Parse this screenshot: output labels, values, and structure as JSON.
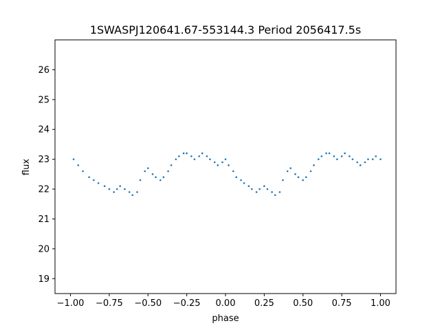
{
  "chart_data": {
    "type": "scatter",
    "title": "1SWASPJ120641.67-553144.3 Period 2056417.5s",
    "xlabel": "phase",
    "ylabel": "flux",
    "xlim": [
      -1.1,
      1.1
    ],
    "ylim": [
      18.5,
      27.0
    ],
    "x_ticks": [
      -1.0,
      -0.75,
      -0.5,
      -0.25,
      0.0,
      0.25,
      0.5,
      0.75,
      1.0
    ],
    "x_tick_labels": [
      "−1.00",
      "−0.75",
      "−0.50",
      "−0.25",
      "0.00",
      "0.25",
      "0.50",
      "0.75",
      "1.00"
    ],
    "y_ticks": [
      19,
      20,
      21,
      22,
      23,
      24,
      25,
      26
    ],
    "y_tick_labels": [
      "19",
      "20",
      "21",
      "22",
      "23",
      "24",
      "25",
      "26"
    ],
    "grid": false,
    "legend": "none",
    "marker_color": "#1f77b4",
    "series": [
      {
        "x": [
          -0.98,
          -0.95,
          -0.92,
          -0.88,
          -0.85,
          -0.82,
          -0.78,
          -0.75,
          -0.72,
          -0.7,
          -0.68,
          -0.65,
          -0.62,
          -0.6,
          -0.57,
          -0.55,
          -0.52,
          -0.5,
          -0.47,
          -0.45,
          -0.42,
          -0.4,
          -0.37,
          -0.35,
          -0.32,
          -0.3,
          -0.27,
          -0.25,
          -0.22,
          -0.2,
          -0.17,
          -0.15,
          -0.12,
          -0.1,
          -0.07,
          -0.05,
          -0.02,
          0.0,
          0.02,
          0.05,
          0.07,
          0.1,
          0.12,
          0.15,
          0.17,
          0.2,
          0.22,
          0.25,
          0.27,
          0.3,
          0.32,
          0.35,
          0.37,
          0.4,
          0.42,
          0.45,
          0.47,
          0.5,
          0.52,
          0.55,
          0.57,
          0.6,
          0.62,
          0.65,
          0.67,
          0.7,
          0.72,
          0.75,
          0.77,
          0.8,
          0.82,
          0.85,
          0.87,
          0.9,
          0.92,
          0.95,
          0.97,
          1.0
        ],
        "y": [
          23.0,
          22.8,
          22.6,
          22.4,
          22.3,
          22.2,
          22.1,
          22.0,
          21.9,
          22.0,
          22.1,
          22.0,
          21.9,
          21.8,
          21.9,
          22.3,
          22.6,
          22.7,
          22.5,
          22.4,
          22.3,
          22.4,
          22.6,
          22.8,
          23.0,
          23.1,
          23.2,
          23.2,
          23.1,
          23.0,
          23.1,
          23.2,
          23.1,
          23.0,
          22.9,
          22.8,
          22.9,
          23.0,
          22.8,
          22.6,
          22.4,
          22.3,
          22.2,
          22.1,
          22.0,
          21.9,
          22.0,
          22.1,
          22.0,
          21.9,
          21.8,
          21.9,
          22.3,
          22.6,
          22.7,
          22.5,
          22.4,
          22.3,
          22.4,
          22.6,
          22.8,
          23.0,
          23.1,
          23.2,
          23.2,
          23.1,
          23.0,
          23.1,
          23.2,
          23.1,
          23.0,
          22.9,
          22.8,
          22.9,
          23.0,
          23.0,
          23.1,
          23.0
        ]
      }
    ]
  }
}
